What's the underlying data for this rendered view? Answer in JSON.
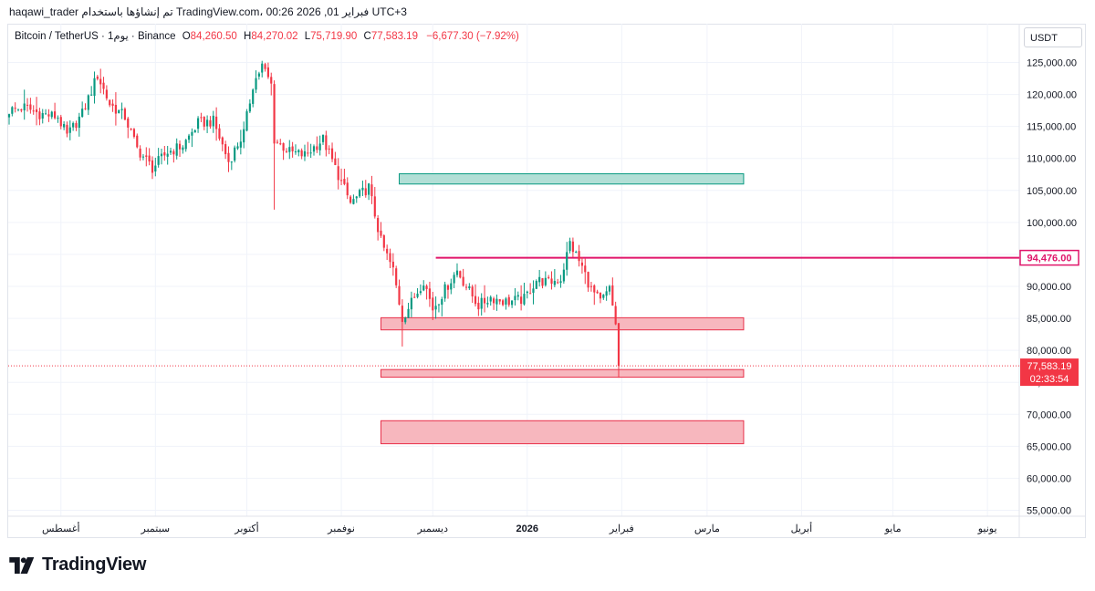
{
  "header": {
    "topline": "haqawi_trader تم إنشاؤها باستخدام TradingView.com، 00:26 2026 ,01 فبراير UTC+3"
  },
  "legend": {
    "symbol": "Bitcoin / TetherUS · 1يوم · Binance",
    "o_label": "O",
    "o_value": "84,260.50",
    "h_label": "H",
    "h_value": "84,270.02",
    "l_label": "L",
    "l_value": "75,719.90",
    "c_label": "C",
    "c_value": "77,583.19",
    "change": "−6,677.30 (−7.92%)"
  },
  "currency_button": "USDT",
  "branding": {
    "logo_text": "TradingView"
  },
  "colors": {
    "up": "#089981",
    "down": "#f23645",
    "grid": "#f0f3fa",
    "zone_red_fill": "#f7b7be",
    "zone_red_stroke": "#e8304a",
    "zone_green_fill": "#b2dfd6",
    "zone_green_stroke": "#089981",
    "hline": "#e0156a",
    "last_price": "#f23645"
  },
  "chart_data": {
    "type": "candlestick",
    "ylim": [
      52000,
      128000
    ],
    "y_ticks": [
      "55,000.00",
      "60,000.00",
      "65,000.00",
      "70,000.00",
      "75,000.00",
      "80,000.00",
      "85,000.00",
      "90,000.00",
      "95,000.00",
      "100,000.00",
      "105,000.00",
      "110,000.00",
      "115,000.00",
      "120,000.00",
      "125,000.00"
    ],
    "y_tick_values": [
      55000,
      60000,
      65000,
      70000,
      75000,
      80000,
      85000,
      90000,
      95000,
      100000,
      105000,
      110000,
      115000,
      120000,
      125000
    ],
    "x_ticks": [
      {
        "label": "أغسطس",
        "date": "2025-08-01"
      },
      {
        "label": "سبتمبر",
        "date": "2025-09-01"
      },
      {
        "label": "أكتوبر",
        "date": "2025-10-01"
      },
      {
        "label": "نوفمبر",
        "date": "2025-11-01"
      },
      {
        "label": "ديسمبر",
        "date": "2025-12-01"
      },
      {
        "label": "2026",
        "date": "2026-01-01",
        "bold": true
      },
      {
        "label": "فبراير",
        "date": "2026-02-01"
      },
      {
        "label": "مارس",
        "date": "2026-03-01"
      },
      {
        "label": "أبريل",
        "date": "2026-04-01"
      },
      {
        "label": "مايو",
        "date": "2026-05-01"
      },
      {
        "label": "يونيو",
        "date": "2026-06-01"
      }
    ],
    "series_dates": {
      "start": "2025-07-15",
      "end": "2026-01-31"
    },
    "close_anchors": [
      [
        "2025-07-15",
        117500
      ],
      [
        "2025-07-20",
        118000
      ],
      [
        "2025-07-25",
        117000
      ],
      [
        "2025-07-31",
        116500
      ],
      [
        "2025-08-03",
        113500
      ],
      [
        "2025-08-08",
        117000
      ],
      [
        "2025-08-13",
        123000
      ],
      [
        "2025-08-17",
        118500
      ],
      [
        "2025-08-22",
        116500
      ],
      [
        "2025-08-26",
        111500
      ],
      [
        "2025-08-31",
        108500
      ],
      [
        "2025-09-05",
        111000
      ],
      [
        "2025-09-10",
        112000
      ],
      [
        "2025-09-15",
        115500
      ],
      [
        "2025-09-20",
        115800
      ],
      [
        "2025-09-25",
        109500
      ],
      [
        "2025-09-30",
        114000
      ],
      [
        "2025-10-03",
        121500
      ],
      [
        "2025-10-06",
        124500
      ],
      [
        "2025-10-09",
        121500
      ],
      [
        "2025-10-10",
        113000
      ],
      [
        "2025-10-15",
        111000
      ],
      [
        "2025-10-20",
        110500
      ],
      [
        "2025-10-26",
        113000
      ],
      [
        "2025-10-30",
        108500
      ],
      [
        "2025-11-04",
        103000
      ],
      [
        "2025-11-10",
        105500
      ],
      [
        "2025-11-14",
        97000
      ],
      [
        "2025-11-18",
        92500
      ],
      [
        "2025-11-21",
        85000
      ],
      [
        "2025-11-24",
        87500
      ],
      [
        "2025-11-28",
        91000
      ],
      [
        "2025-12-01",
        86500
      ],
      [
        "2025-12-05",
        89500
      ],
      [
        "2025-12-09",
        92500
      ],
      [
        "2025-12-12",
        90000
      ],
      [
        "2025-12-16",
        87000
      ],
      [
        "2025-12-20",
        88300
      ],
      [
        "2025-12-25",
        87600
      ],
      [
        "2025-12-31",
        88000
      ],
      [
        "2026-01-04",
        91000
      ],
      [
        "2026-01-08",
        90600
      ],
      [
        "2026-01-12",
        91200
      ],
      [
        "2026-01-15",
        96800
      ],
      [
        "2026-01-19",
        93000
      ],
      [
        "2026-01-22",
        89500
      ],
      [
        "2026-01-25",
        87500
      ],
      [
        "2026-01-28",
        89500
      ],
      [
        "2026-01-30",
        84260
      ],
      [
        "2026-01-31",
        77583
      ]
    ],
    "last_candle": {
      "date": "2026-01-31",
      "o": 84260.5,
      "h": 84270.02,
      "l": 75719.9,
      "c": 77583.19
    },
    "zones": [
      {
        "kind": "supply",
        "from": "2025-11-20",
        "to": "2026-03-13",
        "low": 106000,
        "high": 107600
      },
      {
        "kind": "demand",
        "from": "2025-11-14",
        "to": "2026-03-13",
        "low": 83200,
        "high": 85100
      },
      {
        "kind": "demand",
        "from": "2025-11-14",
        "to": "2026-03-13",
        "low": 75800,
        "high": 77000
      },
      {
        "kind": "demand",
        "from": "2025-11-14",
        "to": "2026-03-13",
        "low": 65400,
        "high": 69000
      }
    ],
    "hline": {
      "from": "2025-12-02",
      "price": 94476.0,
      "label": "94,476.00"
    },
    "last_price_label": "77,583.19",
    "countdown": "02:33:54"
  }
}
